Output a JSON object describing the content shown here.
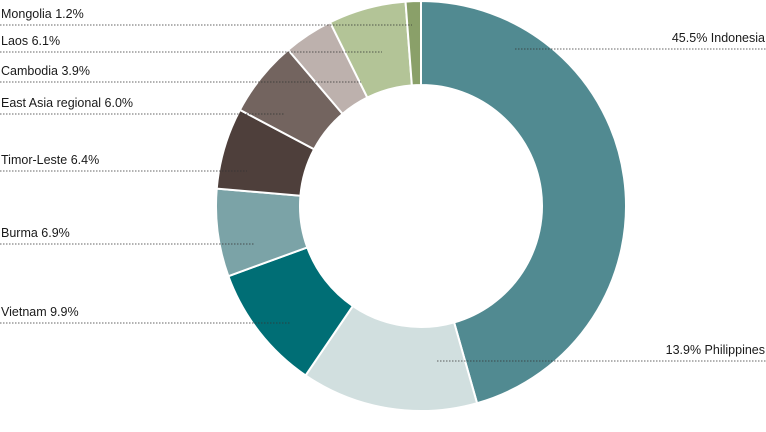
{
  "chart_data": {
    "type": "pie",
    "title": "",
    "slices": [
      {
        "name": "Indonesia",
        "value": 45.5,
        "label": "45.5% Indonesia",
        "color": "#518a91"
      },
      {
        "name": "Philippines",
        "value": 13.9,
        "label": "13.9% Philippines",
        "color": "#d1dfdf"
      },
      {
        "name": "Vietnam",
        "value": 9.9,
        "label": "Vietnam 9.9%",
        "color": "#006e75"
      },
      {
        "name": "Burma",
        "value": 6.9,
        "label": "Burma 6.9%",
        "color": "#7ba3a7"
      },
      {
        "name": "Timor-Leste",
        "value": 6.4,
        "label": "Timor-Leste 6.4%",
        "color": "#4e3f3b"
      },
      {
        "name": "East Asia regional",
        "value": 6.0,
        "label": "East Asia regional 6.0%",
        "color": "#73645f"
      },
      {
        "name": "Cambodia",
        "value": 3.9,
        "label": "Cambodia 3.9%",
        "color": "#bdb1ad"
      },
      {
        "name": "Laos",
        "value": 6.1,
        "label": "Laos 6.1%",
        "color": "#b3c497"
      },
      {
        "name": "Mongolia",
        "value": 1.2,
        "label": "Mongolia 1.2%",
        "color": "#8aa069"
      }
    ],
    "donut": true,
    "legend": "none"
  }
}
